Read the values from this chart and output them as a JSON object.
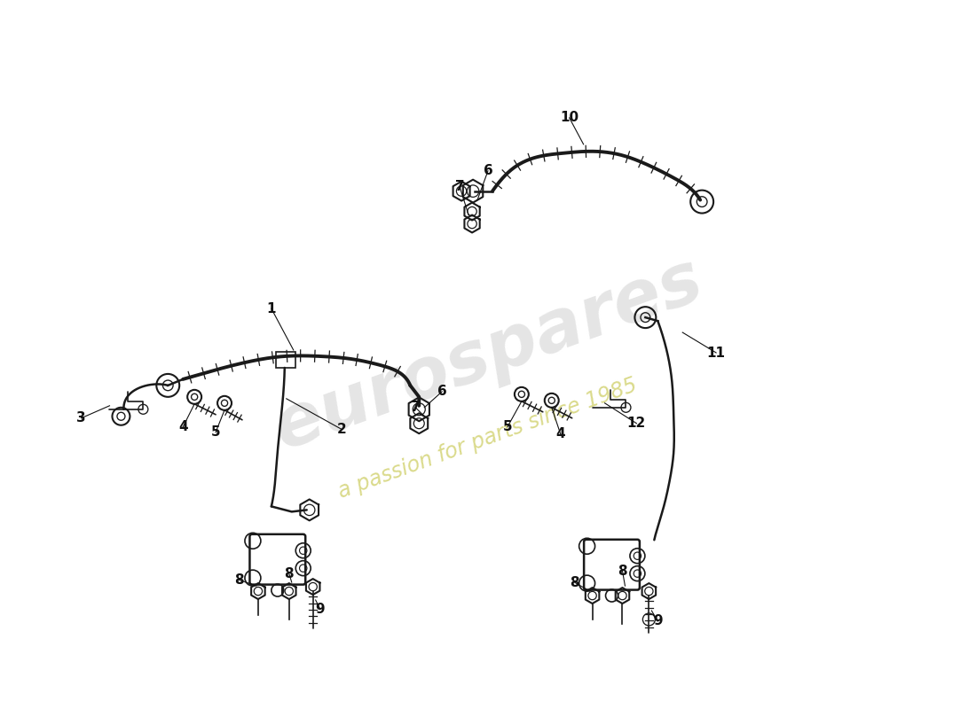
{
  "background_color": "#ffffff",
  "line_color": "#1a1a1a",
  "label_color": "#111111",
  "watermark1": "eurospares",
  "watermark2": "a passion for parts since 1985",
  "fig_w": 11.0,
  "fig_h": 8.0,
  "dpi": 100,
  "xlim": [
    0,
    11
  ],
  "ylim": [
    0,
    8
  ]
}
